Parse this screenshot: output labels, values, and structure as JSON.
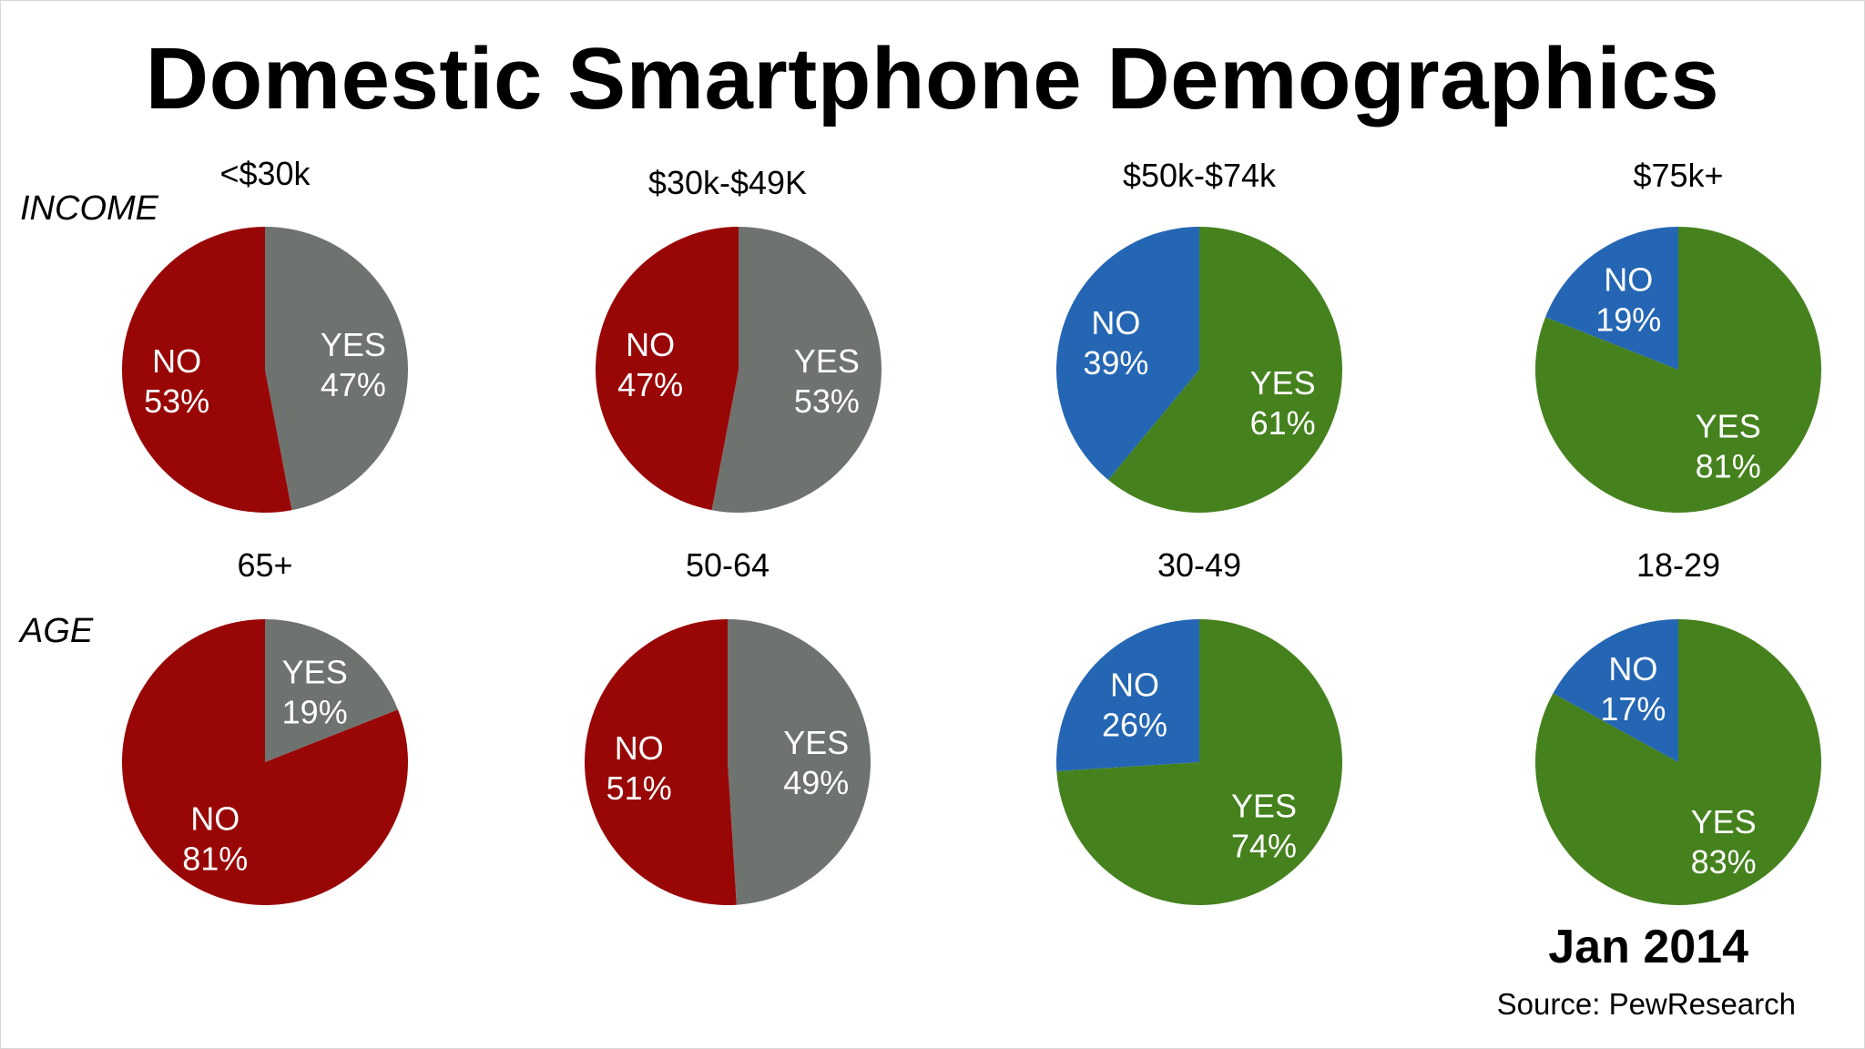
{
  "title": "Domestic Smartphone Demographics",
  "row_labels": {
    "income": "INCOME",
    "age": "AGE"
  },
  "date": "Jan 2014",
  "source": "Source: PewResearch",
  "colors": {
    "red": "#990606",
    "gray": "#6f7370",
    "blue": "#2466b3",
    "green": "#45821e"
  },
  "chart_data": [
    {
      "type": "pie",
      "group": "INCOME",
      "title": "<$30k",
      "slices": [
        {
          "label": "YES",
          "value": 47,
          "text": "47%",
          "color": "gray"
        },
        {
          "label": "NO",
          "value": 53,
          "text": "53%",
          "color": "red"
        }
      ]
    },
    {
      "type": "pie",
      "group": "INCOME",
      "title": "$30k-$49K",
      "slices": [
        {
          "label": "YES",
          "value": 53,
          "text": "53%",
          "color": "gray"
        },
        {
          "label": "NO",
          "value": 47,
          "text": "47%",
          "color": "red"
        }
      ]
    },
    {
      "type": "pie",
      "group": "INCOME",
      "title": "$50k-$74k",
      "slices": [
        {
          "label": "YES",
          "value": 61,
          "text": "61%",
          "color": "green"
        },
        {
          "label": "NO",
          "value": 39,
          "text": "39%",
          "color": "blue"
        }
      ]
    },
    {
      "type": "pie",
      "group": "INCOME",
      "title": "$75k+",
      "slices": [
        {
          "label": "YES",
          "value": 81,
          "text": "81%",
          "color": "green"
        },
        {
          "label": "NO",
          "value": 19,
          "text": "19%",
          "color": "blue"
        }
      ]
    },
    {
      "type": "pie",
      "group": "AGE",
      "title": "65+",
      "slices": [
        {
          "label": "YES",
          "value": 19,
          "text": "19%",
          "color": "gray"
        },
        {
          "label": "NO",
          "value": 81,
          "text": "81%",
          "color": "red"
        }
      ]
    },
    {
      "type": "pie",
      "group": "AGE",
      "title": "50-64",
      "slices": [
        {
          "label": "YES",
          "value": 49,
          "text": "49%",
          "color": "gray"
        },
        {
          "label": "NO",
          "value": 51,
          "text": "51%",
          "color": "red"
        }
      ]
    },
    {
      "type": "pie",
      "group": "AGE",
      "title": "30-49",
      "slices": [
        {
          "label": "YES",
          "value": 74,
          "text": "74%",
          "color": "green"
        },
        {
          "label": "NO",
          "value": 26,
          "text": "26%",
          "color": "blue"
        }
      ]
    },
    {
      "type": "pie",
      "group": "AGE",
      "title": "18-29",
      "slices": [
        {
          "label": "YES",
          "value": 83,
          "text": "83%",
          "color": "green"
        },
        {
          "label": "NO",
          "value": 17,
          "text": "17%",
          "color": "blue"
        }
      ]
    }
  ]
}
